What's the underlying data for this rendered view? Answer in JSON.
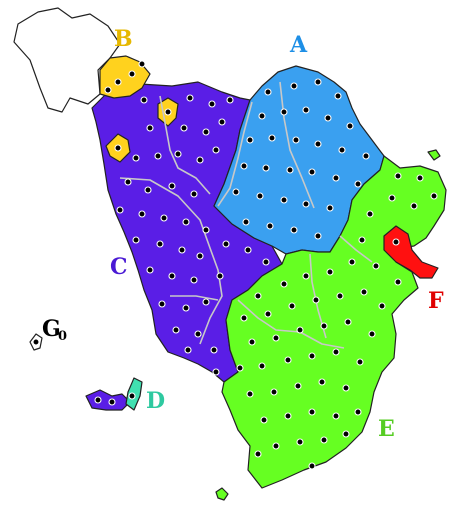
{
  "map": {
    "labels": {
      "A": {
        "text": "A",
        "color": "#1e8fe6"
      },
      "B": {
        "text": "B",
        "color": "#e6b800"
      },
      "C": {
        "text": "C",
        "color": "#4a1ad4"
      },
      "D": {
        "text": "D",
        "color": "#2ec9a0"
      },
      "E": {
        "text": "E",
        "color": "#55cc22"
      },
      "F": {
        "text": "F",
        "color": "#e00000"
      },
      "G": {
        "text": "G",
        "subscript": "0",
        "color": "#000000"
      }
    },
    "colors": {
      "A": "#3aa0f0",
      "B": "#ffd21e",
      "C": "#5a1ee6",
      "D": "#40e0b0",
      "E": "#66ff22",
      "F": "#ff1010",
      "outside": "#ffffff"
    }
  }
}
